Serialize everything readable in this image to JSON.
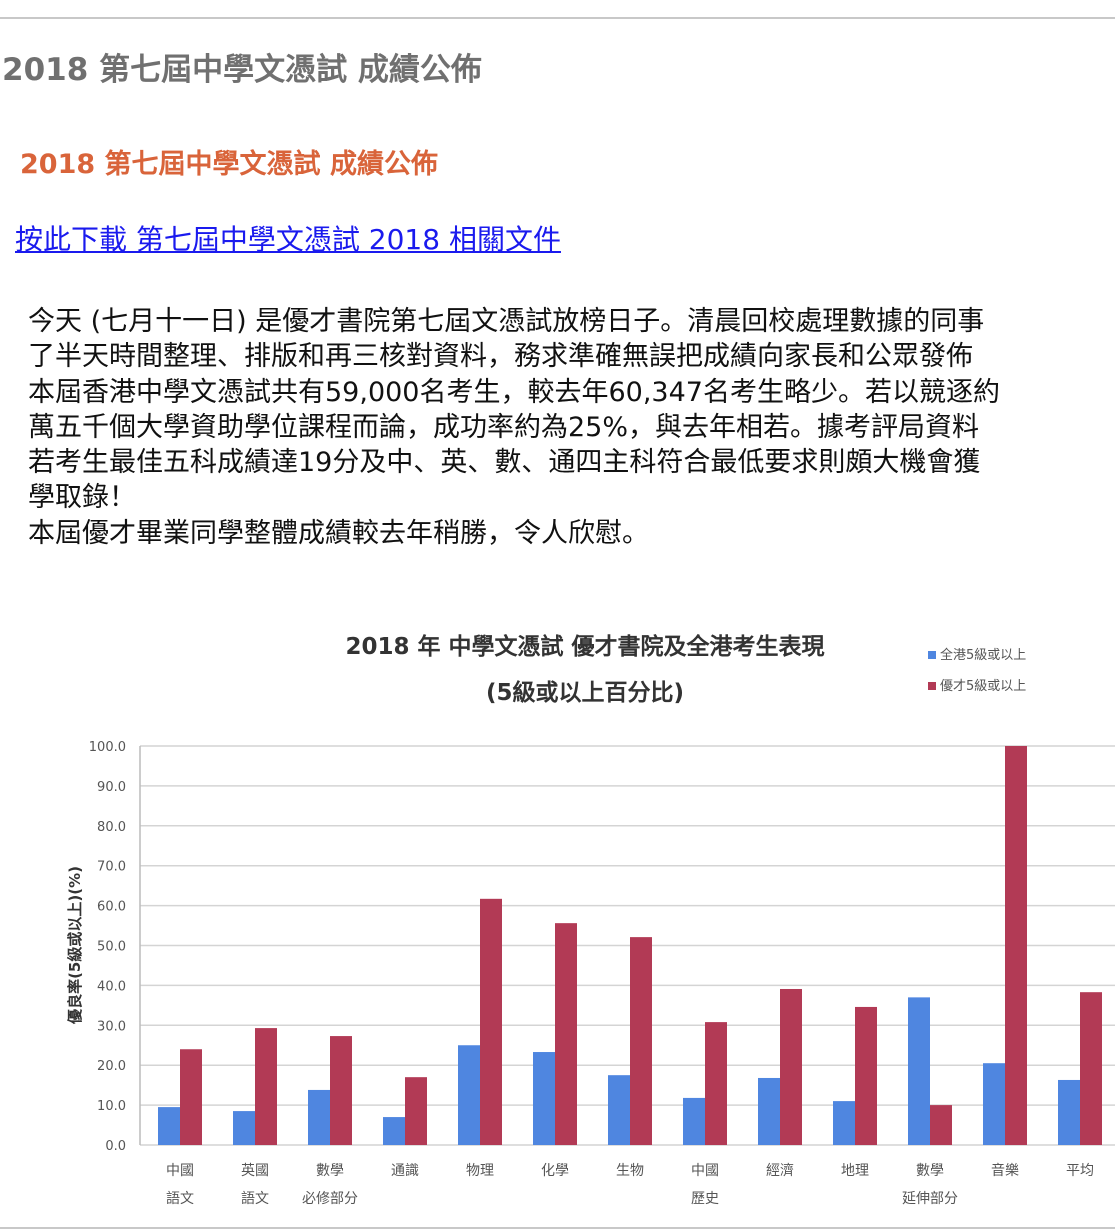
{
  "page": {
    "title": "2018 第七屆中學文憑試 成績公佈",
    "subtitle": "2018 第七屆中學文憑試 成績公佈",
    "download_link": "按此下載 第七屆中學文憑試 2018 相關文件",
    "paragraph_lines": [
      "今天 (七月十一日) 是優才書院第七屆文憑試放榜日子。清晨回校處理數據的同事",
      "了半天時間整理、排版和再三核對資料，務求準確無誤把成績向家長和公眾發佈",
      "本屆香港中學文憑試共有59,000名考生，較去年60,347名考生略少。若以競逐約",
      "萬五千個大學資助學位課程而論，成功率約為25%，與去年相若。據考評局資料",
      "若考生最佳五科成績達19分及中、英、數、通四主科符合最低要求則頗大機會獲",
      "學取錄！",
      "本屆優才畢業同學整體成績較去年稍勝，令人欣慰。"
    ]
  },
  "chart_data": {
    "type": "bar",
    "title": "2018 年 中學文憑試 優才書院及全港考生表現",
    "subtitle": "(5級或以上百分比)",
    "ylabel": "優良率(5級或以上)(%)",
    "xlabel": "",
    "ylim": [
      0,
      100
    ],
    "yticks": [
      "0.0",
      "10.0",
      "20.0",
      "30.0",
      "40.0",
      "50.0",
      "60.0",
      "70.0",
      "80.0",
      "90.0",
      "100.0"
    ],
    "grid": true,
    "legend_position": "top-right",
    "categories": [
      [
        "中國",
        "語文"
      ],
      [
        "英國",
        "語文"
      ],
      [
        "數學",
        "必修部分"
      ],
      [
        "通識"
      ],
      [
        "物理"
      ],
      [
        "化學"
      ],
      [
        "生物"
      ],
      [
        "中國",
        "歷史"
      ],
      [
        "經濟"
      ],
      [
        "地理"
      ],
      [
        "數學",
        "延伸部分"
      ],
      [
        "音樂"
      ],
      [
        "平均"
      ]
    ],
    "series": [
      {
        "name": "全港5級或以上",
        "color": "#4f86e0",
        "values": [
          9.5,
          8.5,
          13.8,
          7.0,
          25.0,
          23.3,
          17.5,
          11.8,
          16.8,
          11.0,
          37.0,
          20.5,
          16.3
        ]
      },
      {
        "name": "優才5級或以上",
        "color": "#b23a55",
        "values": [
          24.0,
          29.3,
          27.3,
          17.0,
          61.7,
          55.6,
          52.1,
          30.8,
          39.1,
          34.6,
          10.0,
          100.0,
          38.3
        ]
      }
    ]
  }
}
